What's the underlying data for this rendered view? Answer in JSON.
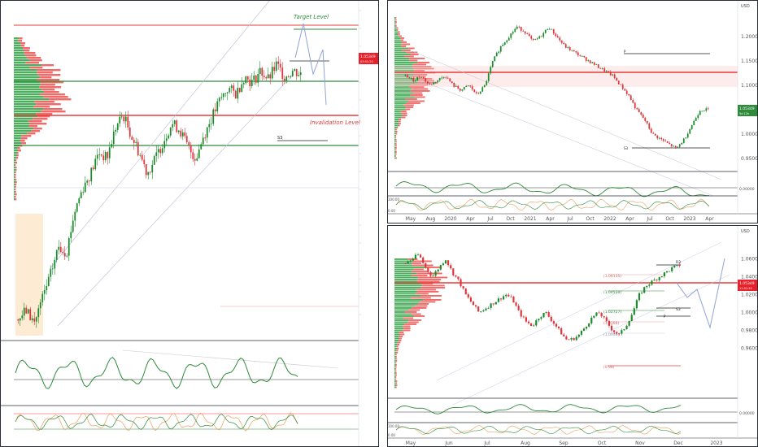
{
  "colors": {
    "up": "#1b8a2b",
    "down": "#e0343b",
    "green_line": "#2e8b3a",
    "red_line": "#e83b3b",
    "price_tag": "#e8202a",
    "profile_green": "#2ea043",
    "profile_red": "#f0504c"
  },
  "left": {
    "target_label": "Target Level",
    "invalidation_label": "Invalidation Level",
    "s_label": "S3",
    "price_tag": "1.05349",
    "price_tag_sub": "03:51:20"
  },
  "top_right": {
    "currency": "USD",
    "y_ticks": [
      "1.20000",
      "1.15000",
      "1.10000",
      "1.05000",
      "1.00000",
      "0.95000"
    ],
    "osc_ticks": [
      "0.00000"
    ],
    "bottom_ticks": [
      "100.00",
      "0.00"
    ],
    "x_ticks": [
      "May",
      "Aug",
      "2020",
      "Apr",
      "Jul",
      "Oct",
      "2021",
      "Apr",
      "Jul",
      "Oct",
      "2022",
      "Apr",
      "Jul",
      "Oct",
      "2023",
      "Apr"
    ],
    "price_tag": "1.05349",
    "price_tag_sub": "5d 12h",
    "s_label": "S3",
    "p_label": "P"
  },
  "bottom_right": {
    "currency": "USD",
    "y_ticks": [
      "1.06000",
      "1.04000",
      "1.02000",
      "1.00000",
      "0.98000",
      "0.96000"
    ],
    "osc_ticks": [
      "0.00000"
    ],
    "bottom_ticks": [
      "100.00",
      "0.00"
    ],
    "x_ticks": [
      "May",
      "Jun",
      "Jul",
      "Aug",
      "Sep",
      "Oct",
      "Nov",
      "Dec",
      "2023"
    ],
    "price_tag": "1.05349",
    "price_tag_sub": "11:51:20",
    "r3_label": "R3",
    "s3_label": "S3",
    "p_label": "P",
    "fib_labels": [
      "(1.06135)",
      "(1.04520)",
      "(1.02727)",
      "(1.0166)",
      "(1.0046)",
      "(0.98)"
    ]
  },
  "chart_data": [
    {
      "type": "candlestick",
      "panel": "left",
      "series_shape": [
        0.05,
        0.08,
        0.04,
        0.12,
        0.2,
        0.3,
        0.28,
        0.42,
        0.5,
        0.55,
        0.62,
        0.6,
        0.7,
        0.75,
        0.68,
        0.62,
        0.55,
        0.6,
        0.66,
        0.72,
        0.7,
        0.64,
        0.6,
        0.68,
        0.74,
        0.8,
        0.84,
        0.82,
        0.88,
        0.86,
        0.9,
        0.87,
        0.92,
        0.88,
        0.9,
        0.89
      ]
    },
    {
      "type": "candlestick",
      "panel": "top-right",
      "y_unit": "USD",
      "values": [
        1.12,
        1.11,
        1.12,
        1.1,
        1.11,
        1.12,
        1.1,
        1.09,
        1.1,
        1.08,
        1.1,
        1.15,
        1.18,
        1.2,
        1.22,
        1.21,
        1.19,
        1.2,
        1.22,
        1.2,
        1.18,
        1.17,
        1.16,
        1.15,
        1.14,
        1.13,
        1.12,
        1.1,
        1.08,
        1.05,
        1.03,
        1.0,
        0.99,
        0.98,
        0.97,
        0.99,
        1.02,
        1.05,
        1.05
      ]
    },
    {
      "type": "candlestick",
      "panel": "bottom-right",
      "y_unit": "USD",
      "values": [
        1.055,
        1.06,
        1.065,
        1.05,
        1.04,
        1.05,
        1.06,
        1.045,
        1.035,
        1.02,
        1.01,
        1.0,
        1.005,
        1.01,
        1.015,
        1.02,
        1.015,
        1.0,
        0.99,
        0.985,
        0.995,
        1.0,
        0.99,
        0.98,
        0.97,
        0.97,
        0.975,
        0.985,
        0.995,
        1.0,
        0.99,
        0.98,
        0.975,
        0.985,
        1.0,
        1.02,
        1.03,
        1.035,
        1.04,
        1.045,
        1.05,
        1.053
      ]
    }
  ]
}
